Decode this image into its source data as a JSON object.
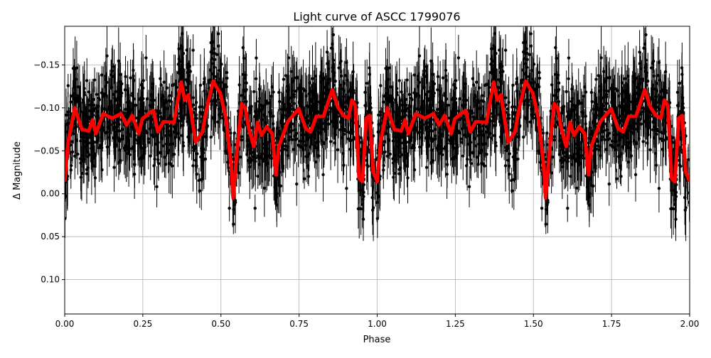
{
  "chart_data": {
    "type": "scatter",
    "title": "Light curve of ASCC 1799076",
    "xlabel": "Phase",
    "ylabel": "Δ Magnitude",
    "xlim": [
      0,
      2
    ],
    "ylim": [
      0.14,
      -0.195
    ],
    "y_inverted": true,
    "grid": true,
    "xticks": [
      0,
      0.25,
      0.5,
      0.75,
      1.0,
      1.25,
      1.5,
      1.75,
      2.0
    ],
    "xtick_labels": [
      "0.00",
      "0.25",
      "0.50",
      "0.75",
      "1.00",
      "1.25",
      "1.50",
      "1.75",
      "2.00"
    ],
    "yticks": [
      -0.15,
      -0.1,
      -0.05,
      0.0,
      0.05,
      0.1
    ],
    "ytick_labels": [
      "−0.15",
      "−0.10",
      "−0.05",
      "0.00",
      "0.05",
      "0.10"
    ],
    "series": [
      {
        "kind": "errorbar-points",
        "color": "#000000"
      },
      {
        "kind": "line",
        "color": "#ff0000",
        "phase": [
          0,
          0.011,
          0.032,
          0.055,
          0.077,
          0.089,
          0.1,
          0.123,
          0.152,
          0.18,
          0.198,
          0.216,
          0.237,
          0.248,
          0.271,
          0.284,
          0.298,
          0.316,
          0.35,
          0.362,
          0.373,
          0.384,
          0.396,
          0.419,
          0.441,
          0.453,
          0.475,
          0.498,
          0.516,
          0.532,
          0.539,
          0.55,
          0.566,
          0.578,
          0.589,
          0.605,
          0.617,
          0.63,
          0.646,
          0.664,
          0.676,
          0.685,
          0.714,
          0.749,
          0.771,
          0.787,
          0.805,
          0.828,
          0.856,
          0.874,
          0.892,
          0.908,
          0.919,
          0.93,
          0.942,
          0.953,
          0.965,
          0.976,
          0.987,
          1.0
        ],
        "magnitude": [
          -0.014,
          -0.06,
          -0.1,
          -0.075,
          -0.073,
          -0.086,
          -0.07,
          -0.093,
          -0.088,
          -0.093,
          -0.08,
          -0.091,
          -0.07,
          -0.087,
          -0.094,
          -0.097,
          -0.072,
          -0.084,
          -0.083,
          -0.109,
          -0.13,
          -0.109,
          -0.115,
          -0.06,
          -0.072,
          -0.097,
          -0.131,
          -0.117,
          -0.088,
          -0.035,
          0.005,
          -0.043,
          -0.105,
          -0.1,
          -0.076,
          -0.055,
          -0.083,
          -0.068,
          -0.078,
          -0.07,
          -0.022,
          -0.055,
          -0.084,
          -0.099,
          -0.076,
          -0.072,
          -0.09,
          -0.09,
          -0.121,
          -0.101,
          -0.091,
          -0.088,
          -0.109,
          -0.103,
          -0.018,
          -0.014,
          -0.088,
          -0.091,
          -0.026,
          -0.014
        ],
        "repeats_per_phase": true
      }
    ]
  }
}
